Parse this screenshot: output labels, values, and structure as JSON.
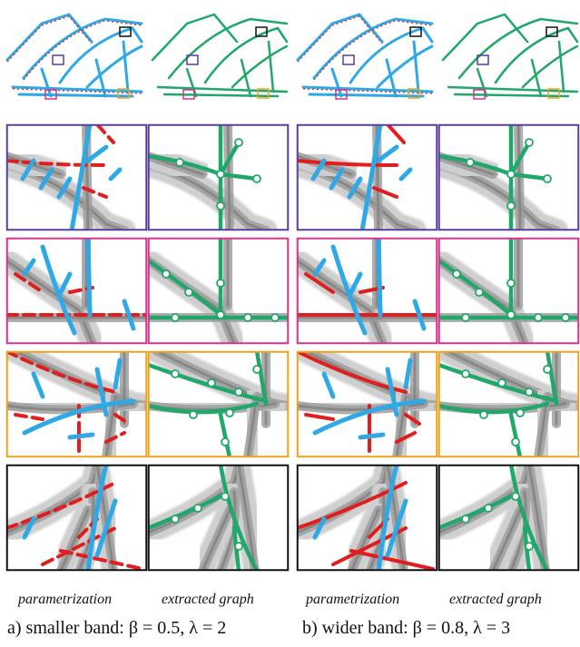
{
  "labels": {
    "col_a_left": "parametrization",
    "col_a_right": "extracted graph",
    "col_b_left": "parametrization",
    "col_b_right": "extracted graph"
  },
  "captions": {
    "a": "a) smaller band: β = 0.5, λ = 2",
    "b": "b) wider band: β = 0.8, λ = 3"
  },
  "colors": {
    "purple": "#5a3d9e",
    "magenta": "#d6338e",
    "orange": "#f0a21a",
    "black": "#111111",
    "blue": "#2fa8e6",
    "red": "#e11d1d",
    "green": "#1fa86a",
    "gray": "#8a8a8a"
  },
  "rows": [
    "purple",
    "magenta",
    "orange",
    "black"
  ]
}
